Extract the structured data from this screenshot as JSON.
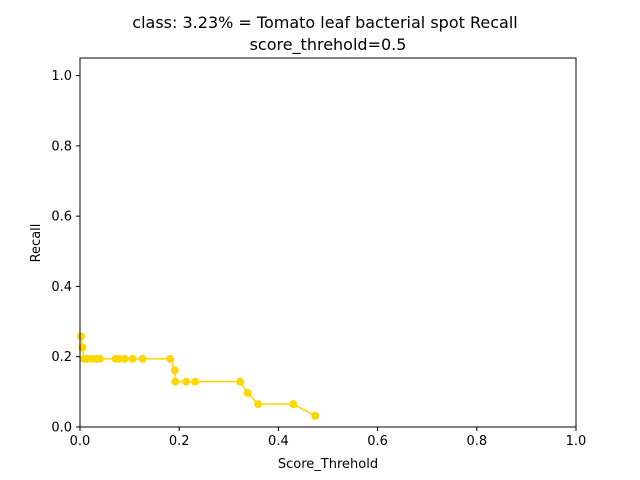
{
  "chart_data": {
    "type": "line",
    "title_line1": "class: 3.23% = Tomato leaf bacterial spot Recall",
    "title_line2": "score_threhold=0.5",
    "xlabel": "Score_Threhold",
    "ylabel": "Recall",
    "xlim": [
      0.0,
      1.0
    ],
    "ylim": [
      0.0,
      1.05
    ],
    "xticks": [
      "0.0",
      "0.2",
      "0.4",
      "0.6",
      "0.8",
      "1.0"
    ],
    "yticks": [
      "0.0",
      "0.2",
      "0.4",
      "0.6",
      "0.8",
      "1.0"
    ],
    "grid": false,
    "series_color": "#ffd700",
    "series": [
      {
        "x": [
          0.002,
          0.005,
          0.008,
          0.015,
          0.025,
          0.033,
          0.04,
          0.072,
          0.078,
          0.09,
          0.106,
          0.126,
          0.182,
          0.191,
          0.192,
          0.214,
          0.232,
          0.323,
          0.338,
          0.359,
          0.43,
          0.474
        ],
        "y": [
          0.258,
          0.226,
          0.194,
          0.194,
          0.194,
          0.194,
          0.194,
          0.194,
          0.194,
          0.194,
          0.194,
          0.194,
          0.194,
          0.161,
          0.129,
          0.129,
          0.129,
          0.129,
          0.097,
          0.065,
          0.065,
          0.032
        ]
      }
    ]
  }
}
